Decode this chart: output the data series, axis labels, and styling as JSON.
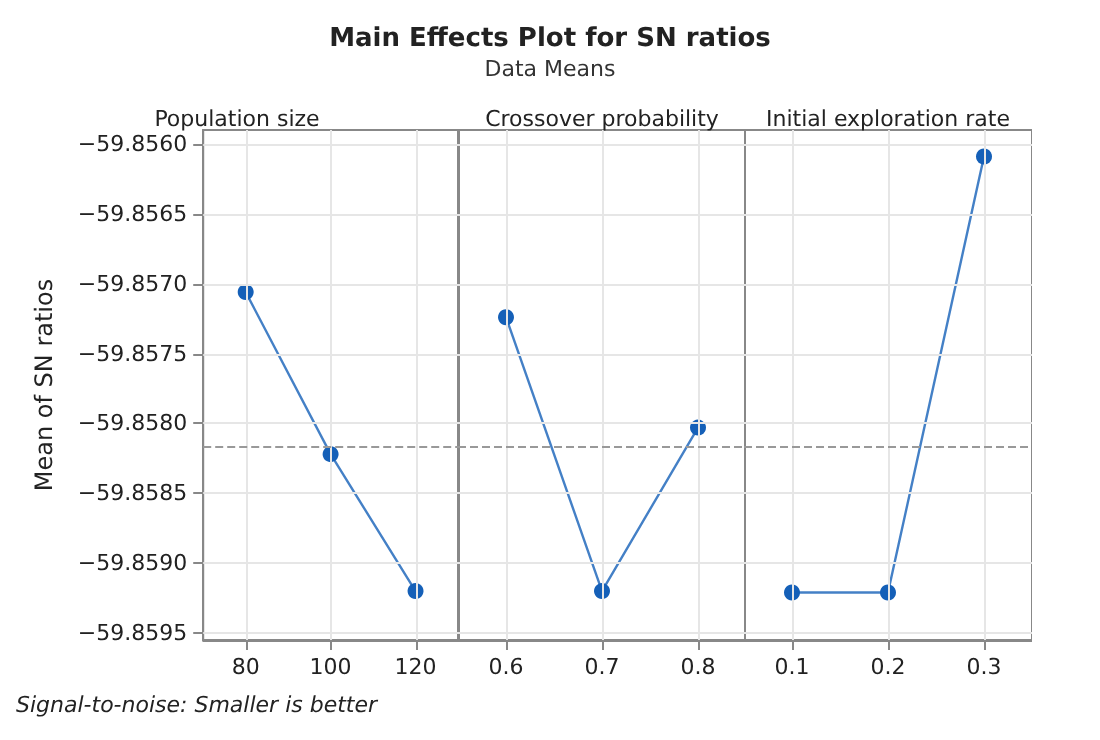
{
  "chart_data": [
    {
      "type": "other",
      "title": "Main Effects Plot for SN ratios",
      "subtitle": "Data Means",
      "annotations": [
        "Signal-to-noise: Smaller is better"
      ]
    },
    {
      "type": "line",
      "title": "Population size",
      "categories": [
        "80",
        "100",
        "120"
      ],
      "values": [
        -59.85706,
        -59.85822,
        -59.8592
      ],
      "color": "#1560b8",
      "ylabel": "Mean of SN ratios",
      "ylim": [
        -59.85955,
        -59.8559
      ],
      "yticks": [
        {
          "value": -59.856,
          "label": "−59.8560"
        },
        {
          "value": -59.8565,
          "label": "−59.8565"
        },
        {
          "value": -59.857,
          "label": "−59.8570"
        },
        {
          "value": -59.8575,
          "label": "−59.8575"
        },
        {
          "value": -59.858,
          "label": "−59.8580"
        },
        {
          "value": -59.8585,
          "label": "−59.8585"
        },
        {
          "value": -59.859,
          "label": "−59.8590"
        },
        {
          "value": -59.8595,
          "label": "−59.8595"
        }
      ],
      "grid": true,
      "marker": "circle",
      "ref_lines": [
        {
          "axis": "y",
          "value": -59.85816,
          "color": "#999999",
          "line_style": "dashed"
        }
      ]
    },
    {
      "type": "line",
      "title": "Crossover probability",
      "categories": [
        "0.6",
        "0.7",
        "0.8"
      ],
      "values": [
        -59.85724,
        -59.8592,
        -59.85803
      ],
      "color": "#1560b8",
      "ylim": [
        -59.85955,
        -59.8559
      ],
      "yticks": [
        -59.856,
        -59.8565,
        -59.857,
        -59.8575,
        -59.858,
        -59.8585,
        -59.859,
        -59.8595
      ],
      "tick_labels": "x",
      "grid": true,
      "marker": "circle",
      "ref_lines": [
        {
          "axis": "y",
          "value": -59.85816,
          "color": "#999999",
          "line_style": "dashed"
        }
      ]
    },
    {
      "type": "line",
      "title": "Initial exploration rate",
      "categories": [
        "0.1",
        "0.2",
        "0.3"
      ],
      "values": [
        -59.85921,
        -59.85921,
        -59.85609
      ],
      "color": "#1560b8",
      "ylim": [
        -59.85955,
        -59.8559
      ],
      "yticks": [
        -59.856,
        -59.8565,
        -59.857,
        -59.8575,
        -59.858,
        -59.8585,
        -59.859,
        -59.8595
      ],
      "tick_labels": "x",
      "grid": true,
      "marker": "circle",
      "ref_lines": [
        {
          "axis": "y",
          "value": -59.85816,
          "color": "#999999",
          "line_style": "dashed"
        }
      ]
    }
  ]
}
